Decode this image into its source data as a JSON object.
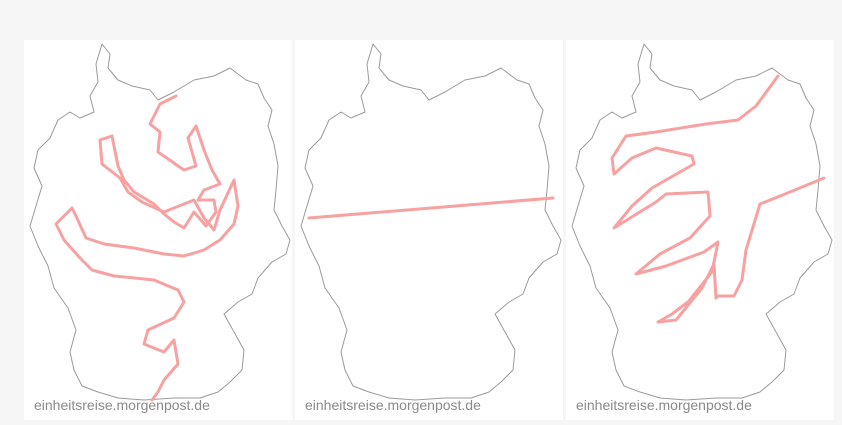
{
  "panels": [
    {
      "credit": "einheitsreise.morgenpost.de",
      "route_color": "#f7a1a1"
    },
    {
      "credit": "einheitsreise.morgenpost.de",
      "route_color": "#f7a1a1"
    },
    {
      "credit": "einheitsreise.morgenpost.de",
      "route_color": "#f7a1a1"
    }
  ],
  "colors": {
    "background": "#f6f6f6",
    "panel": "#ffffff",
    "outline": "#9a9a9a",
    "route": "#f7a1a1"
  }
}
